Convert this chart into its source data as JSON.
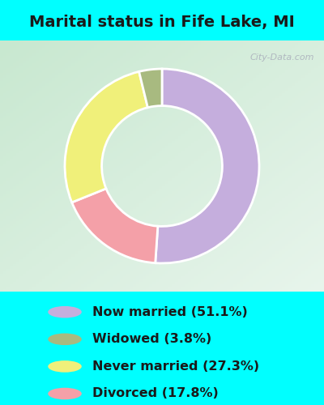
{
  "title": "Marital status in Fife Lake, MI",
  "title_fontsize": 14,
  "title_color": "#1a1a1a",
  "fig_bg_color": "#00ffff",
  "chart_bg_color_tl": "#c8e8d0",
  "chart_bg_color_br": "#e8f5ec",
  "slices": [
    {
      "label": "Now married (51.1%)",
      "value": 51.1,
      "color": "#c5aedd"
    },
    {
      "label": "Divorced (17.8%)",
      "value": 17.8,
      "color": "#f4a0a8"
    },
    {
      "label": "Never married (27.3%)",
      "value": 27.3,
      "color": "#f0f07a"
    },
    {
      "label": "Widowed (3.8%)",
      "value": 3.8,
      "color": "#a8ba80"
    }
  ],
  "legend_order": [
    0,
    3,
    2,
    1
  ],
  "legend_text_color": "#1a1a1a",
  "legend_fontsize": 11.5,
  "donut_width": 0.38,
  "watermark": "City-Data.com",
  "fig_width": 4.0,
  "fig_height": 5.0,
  "dpi": 100
}
